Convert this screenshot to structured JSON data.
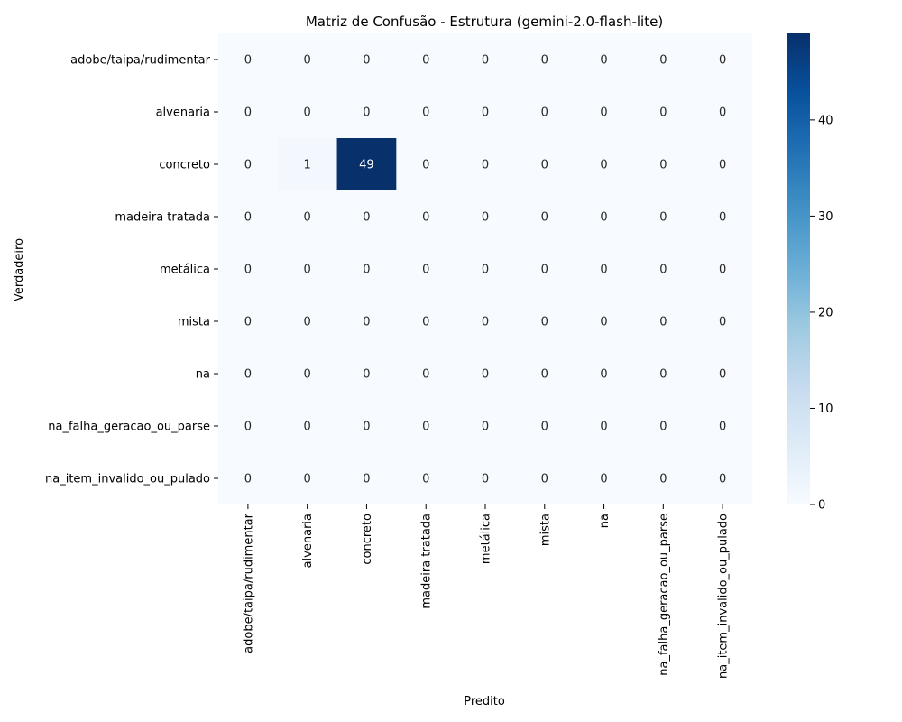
{
  "chart_data": {
    "type": "heatmap",
    "title": "Matriz de Confusão - Estrutura (gemini-2.0-flash-lite)",
    "xlabel": "Predito",
    "ylabel": "Verdadeiro",
    "row_labels": [
      "adobe/taipa/rudimentar",
      "alvenaria",
      "concreto",
      "madeira tratada",
      "metálica",
      "mista",
      "na",
      "na_falha_geracao_ou_parse",
      "na_item_invalido_ou_pulado"
    ],
    "col_labels": [
      "adobe/taipa/rudimentar",
      "alvenaria",
      "concreto",
      "madeira tratada",
      "metálica",
      "mista",
      "na",
      "na_falha_geracao_ou_parse",
      "na_item_invalido_ou_pulado"
    ],
    "values": [
      [
        0,
        0,
        0,
        0,
        0,
        0,
        0,
        0,
        0
      ],
      [
        0,
        0,
        0,
        0,
        0,
        0,
        0,
        0,
        0
      ],
      [
        0,
        1,
        49,
        0,
        0,
        0,
        0,
        0,
        0
      ],
      [
        0,
        0,
        0,
        0,
        0,
        0,
        0,
        0,
        0
      ],
      [
        0,
        0,
        0,
        0,
        0,
        0,
        0,
        0,
        0
      ],
      [
        0,
        0,
        0,
        0,
        0,
        0,
        0,
        0,
        0
      ],
      [
        0,
        0,
        0,
        0,
        0,
        0,
        0,
        0,
        0
      ],
      [
        0,
        0,
        0,
        0,
        0,
        0,
        0,
        0,
        0
      ],
      [
        0,
        0,
        0,
        0,
        0,
        0,
        0,
        0,
        0
      ]
    ],
    "colormap": "Blues",
    "colorbar": {
      "range": [
        0,
        49
      ],
      "ticks": [
        0,
        10,
        20,
        30,
        40
      ]
    }
  }
}
